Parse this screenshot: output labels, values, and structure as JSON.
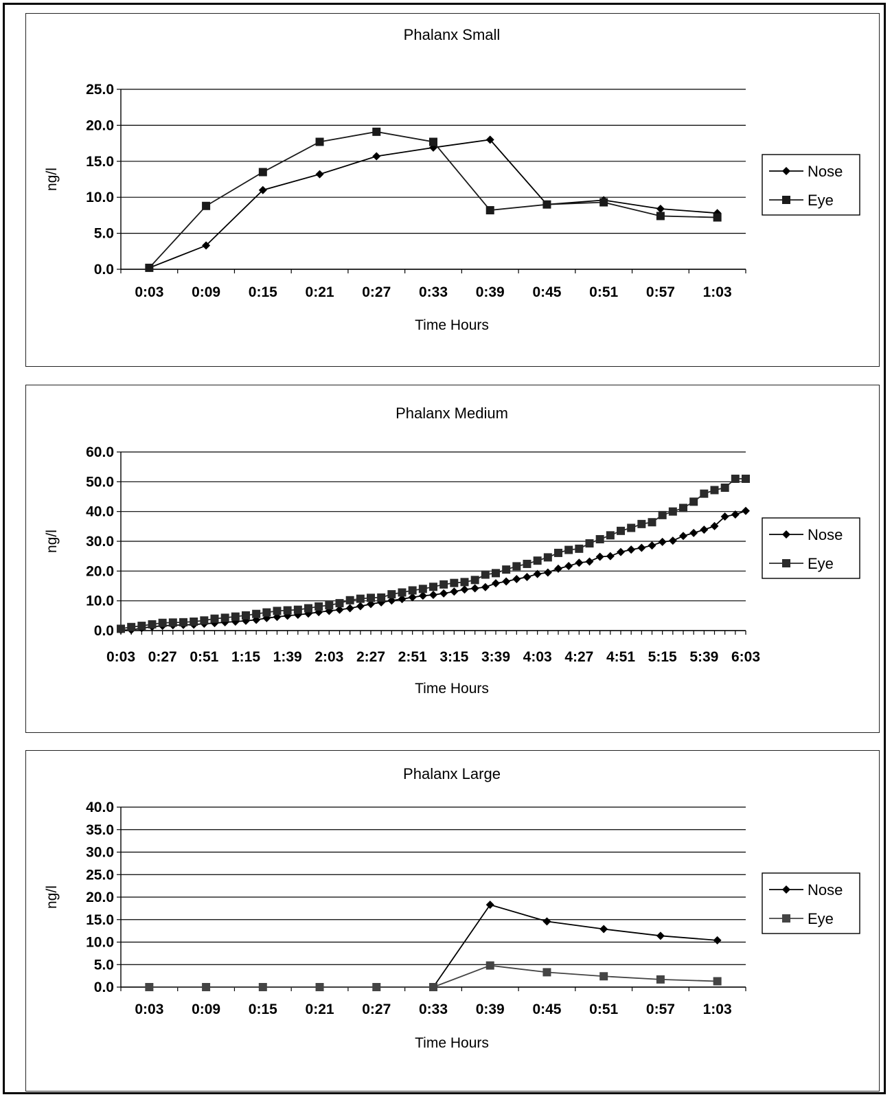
{
  "chart_data": [
    {
      "type": "line",
      "title": "Phalanx Small",
      "xlabel": "Time Hours",
      "ylabel": "ng/l",
      "ylim": [
        0,
        25
      ],
      "yticks": [
        "0.0",
        "5.0",
        "10.0",
        "15.0",
        "20.0",
        "25.0"
      ],
      "categories": [
        "0:03",
        "0:09",
        "0:15",
        "0:21",
        "0:27",
        "0:33",
        "0:39",
        "0:45",
        "0:51",
        "0:57",
        "1:03"
      ],
      "grid": true,
      "legend_position": "right",
      "series": [
        {
          "name": "Nose",
          "marker": "diamond",
          "color": "#000000",
          "values": [
            0.2,
            3.3,
            11.0,
            13.2,
            15.7,
            16.9,
            18.0,
            9.0,
            9.6,
            8.4,
            7.8
          ]
        },
        {
          "name": "Eye",
          "marker": "square",
          "color": "#1a1a1a",
          "values": [
            0.2,
            8.8,
            13.5,
            17.7,
            19.1,
            17.7,
            8.2,
            9.0,
            9.3,
            7.4,
            7.2
          ]
        }
      ]
    },
    {
      "type": "line",
      "title": "Phalanx  Medium",
      "xlabel": "Time Hours",
      "ylabel": "ng/l",
      "ylim": [
        0,
        60
      ],
      "yticks": [
        "0.0",
        "10.0",
        "20.0",
        "30.0",
        "40.0",
        "50.0",
        "60.0"
      ],
      "categories": [
        "0:03",
        "0:09",
        "0:15",
        "0:21",
        "0:27",
        "0:33",
        "0:39",
        "0:45",
        "0:51",
        "0:57",
        "1:03",
        "1:09",
        "1:15",
        "1:21",
        "1:27",
        "1:33",
        "1:39",
        "1:45",
        "1:51",
        "1:57",
        "2:03",
        "2:09",
        "2:15",
        "2:21",
        "2:27",
        "2:33",
        "2:39",
        "2:45",
        "2:51",
        "2:57",
        "3:03",
        "3:09",
        "3:15",
        "3:21",
        "3:27",
        "3:33",
        "3:39",
        "3:45",
        "3:51",
        "3:57",
        "4:03",
        "4:09",
        "4:15",
        "4:21",
        "4:27",
        "4:33",
        "4:39",
        "4:45",
        "4:51",
        "4:57",
        "5:03",
        "5:09",
        "5:15",
        "5:21",
        "5:27",
        "5:33",
        "5:39",
        "5:45",
        "5:51",
        "5:57",
        "6:03"
      ],
      "tick_labels": [
        "0:03",
        "0:27",
        "0:51",
        "1:15",
        "1:39",
        "2:03",
        "2:27",
        "2:51",
        "3:15",
        "3:39",
        "4:03",
        "4:27",
        "4:51",
        "5:15",
        "5:39",
        "6:03"
      ],
      "grid": true,
      "legend_position": "right",
      "series": [
        {
          "name": "Nose",
          "marker": "diamond",
          "color": "#000000",
          "values": [
            0.2,
            0.2,
            0.8,
            1.3,
            1.6,
            1.8,
            1.9,
            2.0,
            2.3,
            2.5,
            2.8,
            3.0,
            3.3,
            3.6,
            4.2,
            4.6,
            5.0,
            5.3,
            5.7,
            6.2,
            6.6,
            7.0,
            7.5,
            8.2,
            8.9,
            9.5,
            10.1,
            10.6,
            11.2,
            11.7,
            12.0,
            12.5,
            13.1,
            13.8,
            14.2,
            14.6,
            15.9,
            16.5,
            17.3,
            18.0,
            19.0,
            19.5,
            20.8,
            21.7,
            22.8,
            23.2,
            24.8,
            25.0,
            26.4,
            27.2,
            27.8,
            28.6,
            29.8,
            30.2,
            31.8,
            32.8,
            33.9,
            35.1,
            38.3,
            39.0,
            40.2
          ]
        },
        {
          "name": "Eye",
          "marker": "square",
          "color": "#2a2a2a",
          "values": [
            0.6,
            1.2,
            1.6,
            2.1,
            2.6,
            2.7,
            2.8,
            3.0,
            3.4,
            4.0,
            4.3,
            4.7,
            5.1,
            5.6,
            6.1,
            6.6,
            6.8,
            7.0,
            7.5,
            8.1,
            8.5,
            9.2,
            10.2,
            10.7,
            11.0,
            11.1,
            12.2,
            12.8,
            13.5,
            14.0,
            14.7,
            15.5,
            16.0,
            16.3,
            17.0,
            18.8,
            19.3,
            20.5,
            21.6,
            22.4,
            23.5,
            24.6,
            26.1,
            27.1,
            27.5,
            29.3,
            30.7,
            32.0,
            33.5,
            34.5,
            35.8,
            36.4,
            38.8,
            40.0,
            41.2,
            43.3,
            46.0,
            47.2,
            48.0,
            51.0,
            51.0
          ]
        }
      ]
    },
    {
      "type": "line",
      "title": "Phalanx Large",
      "xlabel": "Time Hours",
      "ylabel": "ng/l",
      "ylim": [
        0,
        40
      ],
      "yticks": [
        "0.0",
        "5.0",
        "10.0",
        "15.0",
        "20.0",
        "25.0",
        "30.0",
        "35.0",
        "40.0"
      ],
      "categories": [
        "0:03",
        "0:09",
        "0:15",
        "0:21",
        "0:27",
        "0:33",
        "0:39",
        "0:45",
        "0:51",
        "0:57",
        "1:03"
      ],
      "grid": true,
      "legend_position": "right",
      "series": [
        {
          "name": "Nose",
          "marker": "diamond",
          "color": "#000000",
          "values": [
            0.0,
            0.0,
            0.0,
            0.0,
            0.0,
            0.0,
            18.3,
            14.6,
            12.9,
            11.4,
            10.4
          ]
        },
        {
          "name": "Eye",
          "marker": "square",
          "color": "#444444",
          "values": [
            0.0,
            0.0,
            0.0,
            0.0,
            0.0,
            0.0,
            4.8,
            3.3,
            2.4,
            1.7,
            1.3
          ]
        }
      ]
    }
  ]
}
